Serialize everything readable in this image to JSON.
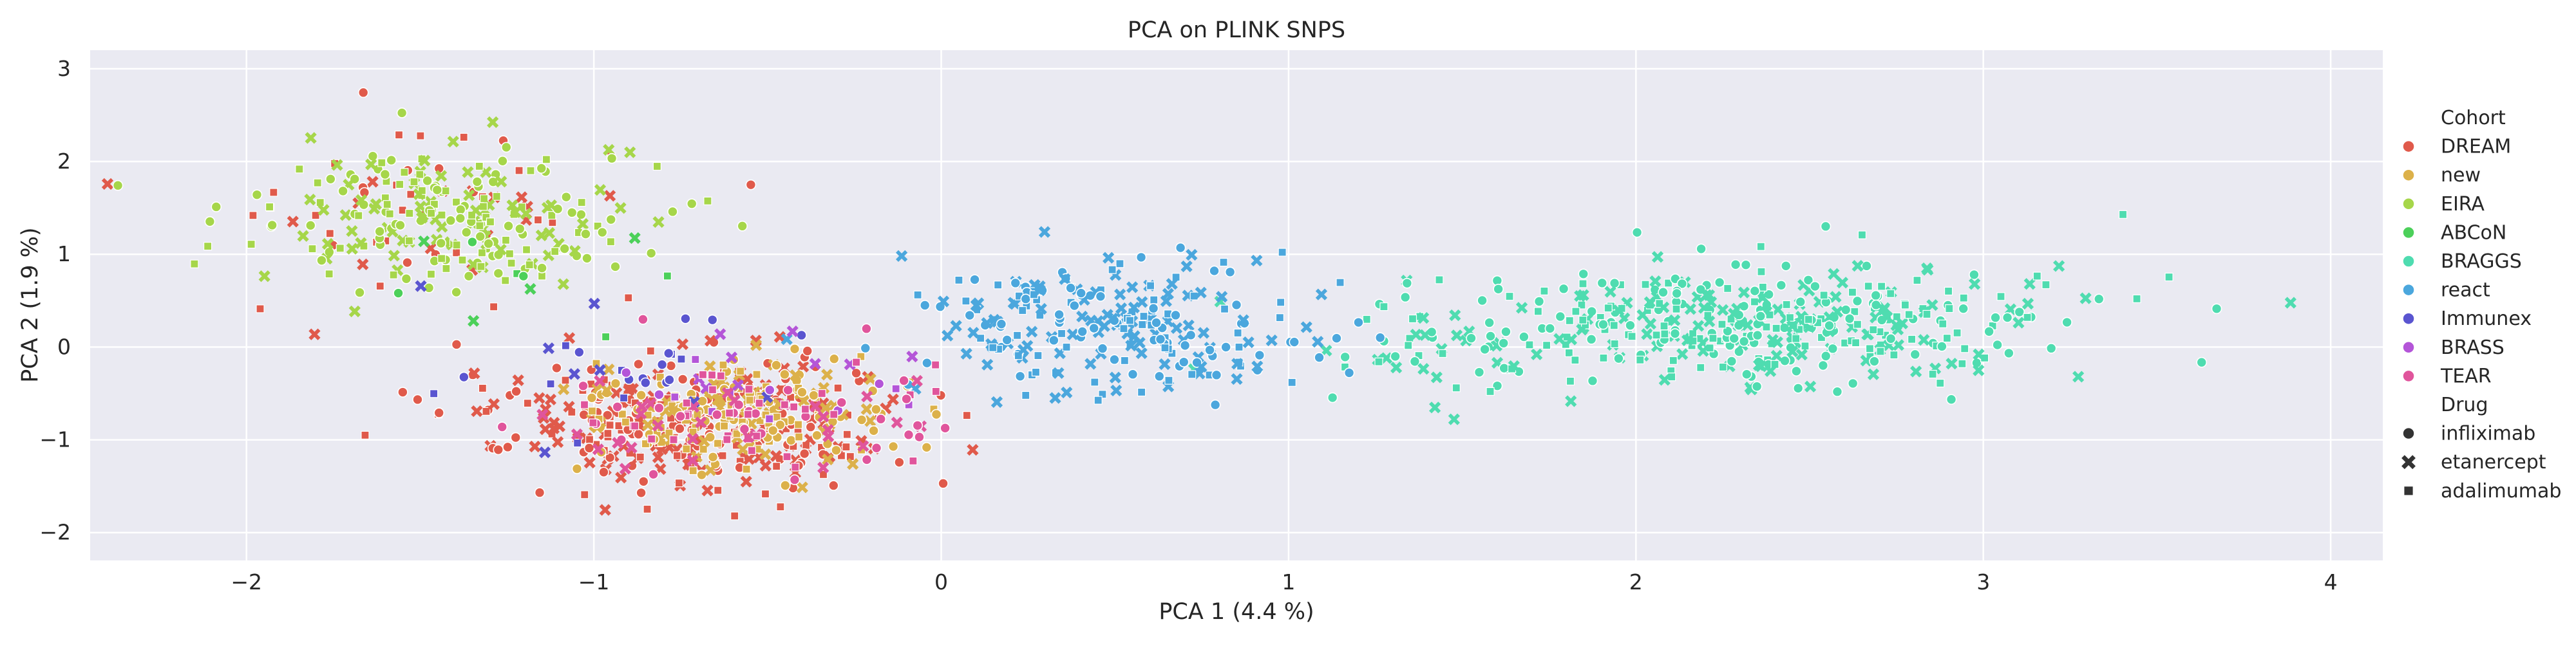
{
  "chart_data": {
    "type": "scatter",
    "title": "PCA on PLINK SNPS",
    "xlabel": "PCA 1 (4.4 %)",
    "ylabel": "PCA 2 (1.9 %)",
    "xlim": [
      -2.45,
      4.15
    ],
    "ylim": [
      -2.3,
      3.2
    ],
    "xticks": [
      -2,
      -1,
      0,
      1,
      2,
      3,
      4
    ],
    "yticks": [
      -2,
      -1,
      0,
      1,
      2,
      3
    ],
    "grid": true,
    "legend_position": "right",
    "legend": {
      "hue_title": "Cohort",
      "style_title": "Drug",
      "cohorts": [
        {
          "name": "DREAM",
          "color": "#e05a4b"
        },
        {
          "name": "new",
          "color": "#dcb14a"
        },
        {
          "name": "EIRA",
          "color": "#a6d64a"
        },
        {
          "name": "ABCoN",
          "color": "#4cd05a"
        },
        {
          "name": "BRAGGS",
          "color": "#4fdcb0"
        },
        {
          "name": "react",
          "color": "#4ba7dd"
        },
        {
          "name": "Immunex",
          "color": "#5a55d0"
        },
        {
          "name": "BRASS",
          "color": "#b455d8"
        },
        {
          "name": "TEAR",
          "color": "#e0559c"
        }
      ],
      "drugs": [
        {
          "name": "infliximab",
          "marker": "circle"
        },
        {
          "name": "etanercept",
          "marker": "x"
        },
        {
          "name": "adalimumab",
          "marker": "square"
        }
      ]
    },
    "clusters": [
      {
        "cohort": "DREAM",
        "center": [
          -0.75,
          -0.8
        ],
        "spread": [
          0.3,
          0.35
        ],
        "count": 320
      },
      {
        "cohort": "DREAM",
        "center": [
          -1.5,
          1.5
        ],
        "spread": [
          0.3,
          0.45
        ],
        "count": 55
      },
      {
        "cohort": "new",
        "center": [
          -0.6,
          -0.7
        ],
        "spread": [
          0.25,
          0.3
        ],
        "count": 210
      },
      {
        "cohort": "EIRA",
        "center": [
          -1.4,
          1.4
        ],
        "spread": [
          0.28,
          0.4
        ],
        "count": 230
      },
      {
        "cohort": "ABCoN",
        "center": [
          -1.25,
          0.6
        ],
        "spread": [
          0.2,
          0.3
        ],
        "count": 10
      },
      {
        "cohort": "BRAGGS",
        "center": [
          2.35,
          0.25
        ],
        "spread": [
          0.45,
          0.33
        ],
        "count": 430
      },
      {
        "cohort": "BRAGGS",
        "center": [
          1.25,
          -0.1
        ],
        "spread": [
          0.2,
          0.3
        ],
        "count": 25
      },
      {
        "cohort": "react",
        "center": [
          0.5,
          0.2
        ],
        "spread": [
          0.3,
          0.38
        ],
        "count": 240
      },
      {
        "cohort": "Immunex",
        "center": [
          -1.0,
          -0.2
        ],
        "spread": [
          0.25,
          0.45
        ],
        "count": 28
      },
      {
        "cohort": "BRASS",
        "center": [
          -0.55,
          -0.45
        ],
        "spread": [
          0.3,
          0.35
        ],
        "count": 22
      },
      {
        "cohort": "TEAR",
        "center": [
          -0.55,
          -0.75
        ],
        "spread": [
          0.3,
          0.3
        ],
        "count": 95
      }
    ]
  }
}
